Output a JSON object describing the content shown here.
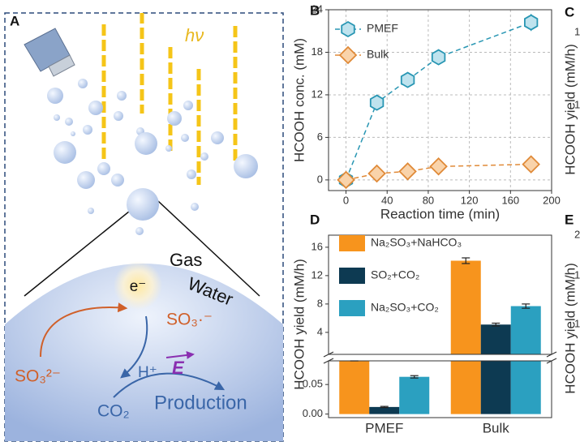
{
  "panel_a": {
    "label": "A",
    "light": "hν",
    "gas": "Gas",
    "water": "Water",
    "electron": "e⁻",
    "radical": "SO₃·⁻",
    "sulfite": "SO₃²⁻",
    "proton": "H⁺",
    "field": "E",
    "co2": "CO₂",
    "product": "Production"
  },
  "cropped_panels": {
    "c_label": "C",
    "c_axis": "HCOOH yield (mM/h)",
    "c_tick_a": "1",
    "c_tick_b": "1",
    "e_label": "E",
    "e_axis": "HCOOH yield (mM/h)",
    "e_tick_a": "2",
    "e_tick_b": "1",
    "e_tick_c": "1"
  },
  "chart_data": [
    {
      "type": "line",
      "panel": "B",
      "xlabel": "Reaction time (min)",
      "ylabel": "HCOOH conc. (mM)",
      "x": [
        0,
        30,
        60,
        90,
        180
      ],
      "xlim": [
        -17,
        200
      ],
      "xticks": [
        0,
        40,
        80,
        120,
        160,
        200
      ],
      "ylim": [
        -1.5,
        24
      ],
      "yticks": [
        0,
        6,
        12,
        18,
        24
      ],
      "grid": true,
      "legend": "upper left",
      "series": [
        {
          "name": "PMEF",
          "color": "#2896b3",
          "fill": "#bfe3ee",
          "marker": "hexagon",
          "values": [
            0,
            10.9,
            14.1,
            17.3,
            22.2
          ],
          "errors": [
            0.2,
            0.4,
            0.4,
            0.5,
            1.2
          ]
        },
        {
          "name": "Bulk",
          "color": "#e08a38",
          "fill": "#f9d3aa",
          "marker": "diamond",
          "values": [
            0,
            0.9,
            1.2,
            1.9,
            2.2
          ],
          "errors": [
            0.1,
            0.2,
            0.3,
            0.3,
            0.3
          ]
        }
      ]
    },
    {
      "type": "bar",
      "panel": "D",
      "ylabel": "HCOOH  yield (mM/h)",
      "categories": [
        "PMEF",
        "Bulk"
      ],
      "ylim": [
        0.9,
        17.7
      ],
      "yticks": [
        4,
        8,
        12,
        16
      ],
      "lower_ylim": [
        -0.006,
        0.09
      ],
      "lower_yticks": [
        {
          "value": 0,
          "label": "0.00"
        },
        {
          "value": 0.05,
          "label": "0.05"
        }
      ],
      "legend": "upper left",
      "series": [
        {
          "name": "Na₂SO₃+NaHCO₃",
          "color": "#f7941d",
          "values": [
            0.1,
            14.1
          ],
          "errors": [
            0.002,
            0.4
          ]
        },
        {
          "name": "SO₂+CO₂",
          "color": "#0d3a52",
          "values": [
            0.012,
            5.1
          ],
          "errors": [
            0.001,
            0.2
          ]
        },
        {
          "name": "Na₂SO₃+CO₂",
          "color": "#2ba0c0",
          "values": [
            0.063,
            7.7
          ],
          "errors": [
            0.002,
            0.3
          ]
        }
      ]
    }
  ]
}
